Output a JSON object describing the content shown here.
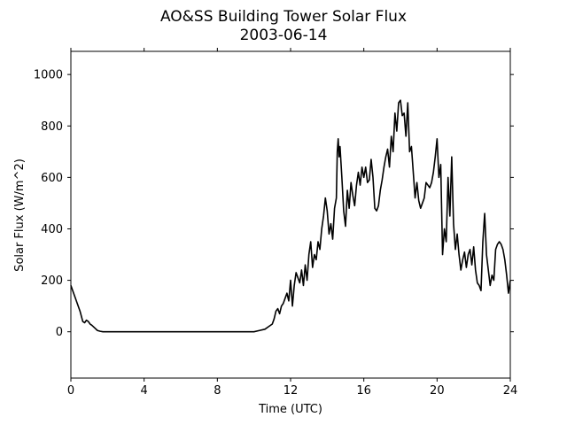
{
  "chart_data": {
    "type": "line",
    "title": "AO&SS Building Tower Solar Flux",
    "subtitle": "2003-06-14",
    "xlabel": "Time (UTC)",
    "ylabel": "Solar Flux (W/m^2)",
    "xlim": [
      0,
      24
    ],
    "ylim": [
      -180,
      1090
    ],
    "x_ticks": [
      "0",
      "4",
      "8",
      "12",
      "16",
      "20",
      "24"
    ],
    "y_ticks": [
      "0",
      "200",
      "400",
      "600",
      "800",
      "1000"
    ],
    "grid": false,
    "line_color": "#000000",
    "series": [
      {
        "x": [
          0.0,
          0.1,
          0.2,
          0.35,
          0.5,
          0.65,
          0.75,
          0.85,
          0.95,
          1.05,
          1.15,
          1.3,
          1.45,
          1.6,
          1.75,
          1.9,
          2.1,
          2.5,
          3,
          4,
          5,
          6,
          7,
          8,
          9,
          9.6,
          10.0,
          10.3,
          10.6,
          10.8,
          11.0,
          11.1,
          11.2,
          11.3,
          11.4,
          11.5,
          11.6,
          11.7,
          11.8,
          11.9,
          12.0,
          12.1,
          12.2,
          12.3,
          12.4,
          12.5,
          12.6,
          12.7,
          12.8,
          12.9,
          13.0,
          13.1,
          13.2,
          13.3,
          13.4,
          13.5,
          13.6,
          13.7,
          13.8,
          13.9,
          14.0,
          14.1,
          14.2,
          14.3,
          14.4,
          14.5,
          14.55,
          14.6,
          14.65,
          14.7,
          14.8,
          14.9,
          15.0,
          15.1,
          15.2,
          15.3,
          15.4,
          15.5,
          15.6,
          15.7,
          15.8,
          15.9,
          16.0,
          16.1,
          16.2,
          16.3,
          16.4,
          16.5,
          16.6,
          16.7,
          16.8,
          16.9,
          17.0,
          17.1,
          17.2,
          17.3,
          17.4,
          17.5,
          17.6,
          17.7,
          17.8,
          17.9,
          18.0,
          18.1,
          18.2,
          18.3,
          18.4,
          18.5,
          18.6,
          18.7,
          18.8,
          18.9,
          19.0,
          19.1,
          19.2,
          19.3,
          19.4,
          19.5,
          19.6,
          19.7,
          19.8,
          19.9,
          20.0,
          20.1,
          20.2,
          20.3,
          20.4,
          20.5,
          20.6,
          20.7,
          20.8,
          20.9,
          21.0,
          21.1,
          21.2,
          21.3,
          21.4,
          21.5,
          21.6,
          21.7,
          21.8,
          21.9,
          22.0,
          22.1,
          22.2,
          22.3,
          22.4,
          22.5,
          22.6,
          22.7,
          22.8,
          22.9,
          23.0,
          23.1,
          23.2,
          23.3,
          23.4,
          23.5,
          23.6,
          23.7,
          23.8,
          23.9,
          24.0
        ],
        "y": [
          180,
          160,
          140,
          110,
          80,
          40,
          35,
          45,
          40,
          30,
          25,
          15,
          5,
          2,
          0,
          0,
          0,
          0,
          0,
          0,
          0,
          0,
          0,
          0,
          0,
          0,
          0,
          5,
          10,
          20,
          30,
          50,
          80,
          90,
          70,
          100,
          110,
          130,
          150,
          120,
          200,
          100,
          180,
          230,
          210,
          190,
          240,
          180,
          260,
          200,
          300,
          350,
          250,
          300,
          280,
          350,
          320,
          400,
          450,
          520,
          470,
          380,
          420,
          360,
          480,
          520,
          700,
          750,
          680,
          720,
          600,
          470,
          410,
          550,
          480,
          580,
          530,
          490,
          570,
          620,
          570,
          640,
          600,
          640,
          580,
          590,
          670,
          600,
          480,
          470,
          490,
          550,
          590,
          640,
          680,
          710,
          640,
          760,
          700,
          850,
          780,
          890,
          900,
          840,
          850,
          760,
          890,
          700,
          720,
          620,
          520,
          580,
          510,
          480,
          500,
          520,
          580,
          570,
          560,
          580,
          620,
          680,
          750,
          600,
          650,
          300,
          400,
          350,
          600,
          450,
          680,
          420,
          320,
          380,
          300,
          240,
          280,
          310,
          250,
          300,
          320,
          260,
          330,
          240,
          190,
          180,
          160,
          350,
          460,
          300,
          240,
          180,
          220,
          200,
          320,
          340,
          350,
          340,
          320,
          280,
          220,
          150,
          200
        ]
      }
    ]
  }
}
